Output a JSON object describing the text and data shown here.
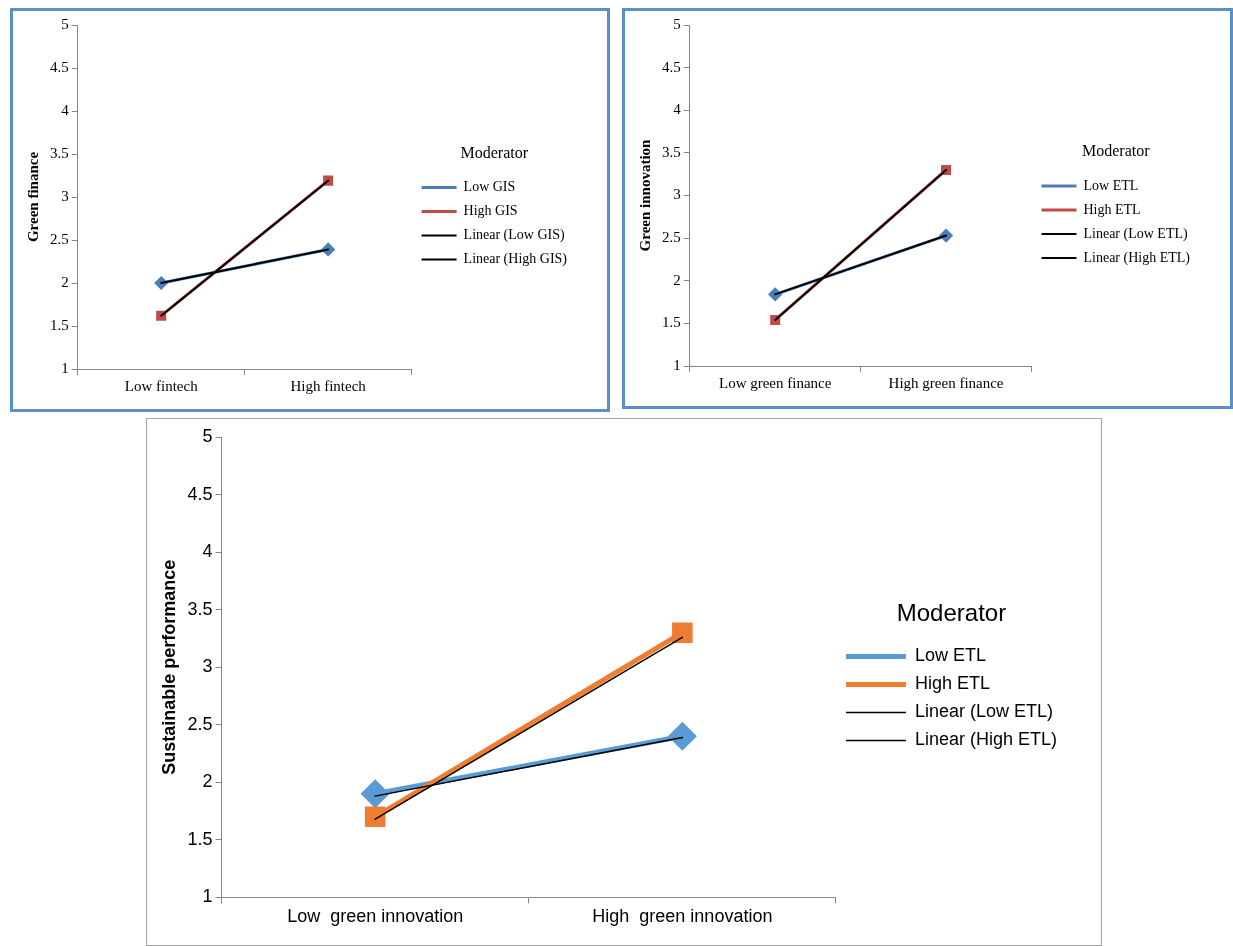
{
  "chart_data": [
    {
      "type": "line",
      "ylabel": "Green finance",
      "legend_title": "Moderator",
      "categories": [
        "Low fintech",
        "High fintech"
      ],
      "ylim": [
        1,
        5
      ],
      "yticks": [
        1,
        1.5,
        2,
        2.5,
        3,
        3.5,
        4,
        4.5,
        5
      ],
      "grid": false,
      "legend": "right",
      "series": [
        {
          "name": "Low GIS",
          "color": "#4a7ebb",
          "values": [
            2.0,
            2.39
          ],
          "marker": "diamond"
        },
        {
          "name": "High GIS",
          "color": "#be4b48",
          "values": [
            1.62,
            3.19
          ],
          "marker": "square"
        },
        {
          "name": "Linear (Low GIS)",
          "color": "#000000",
          "values": [
            2.0,
            2.39
          ],
          "marker": "none"
        },
        {
          "name": "Linear (High GIS)",
          "color": "#000000",
          "values": [
            1.62,
            3.19
          ],
          "marker": "none"
        }
      ]
    },
    {
      "type": "line",
      "ylabel": "Green innovation",
      "legend_title": "Moderator",
      "categories": [
        "Low green finance",
        "High green finance"
      ],
      "ylim": [
        1,
        5
      ],
      "yticks": [
        1,
        1.5,
        2,
        2.5,
        3,
        3.5,
        4,
        4.5,
        5
      ],
      "grid": false,
      "legend": "right",
      "series": [
        {
          "name": "Low ETL",
          "color": "#4a7ebb",
          "values": [
            1.84,
            2.53
          ],
          "marker": "diamond"
        },
        {
          "name": "High ETL",
          "color": "#be4b48",
          "values": [
            1.54,
            3.3
          ],
          "marker": "square"
        },
        {
          "name": "Linear (Low ETL)",
          "color": "#000000",
          "values": [
            1.84,
            2.53
          ],
          "marker": "none"
        },
        {
          "name": "Linear (High ETL)",
          "color": "#000000",
          "values": [
            1.54,
            3.3
          ],
          "marker": "none"
        }
      ]
    },
    {
      "type": "line",
      "ylabel": "Sustainable performance",
      "legend_title": "Moderator",
      "categories": [
        "Low  green innovation",
        "High  green innovation"
      ],
      "ylim": [
        1,
        5
      ],
      "yticks": [
        1,
        1.5,
        2,
        2.5,
        3,
        3.5,
        4,
        4.5,
        5
      ],
      "grid": false,
      "legend": "right",
      "series": [
        {
          "name": "Low ETL",
          "color": "#5b9bd5",
          "values": [
            1.9,
            2.4
          ],
          "marker": "diamond"
        },
        {
          "name": "High ETL",
          "color": "#ed7d31",
          "values": [
            1.7,
            3.3
          ],
          "marker": "square"
        },
        {
          "name": "Linear (Low ETL)",
          "color": "#000000",
          "values": [
            1.88,
            2.39
          ],
          "marker": "none"
        },
        {
          "name": "Linear (High ETL)",
          "color": "#000000",
          "values": [
            1.68,
            3.26
          ],
          "marker": "none"
        }
      ]
    }
  ]
}
